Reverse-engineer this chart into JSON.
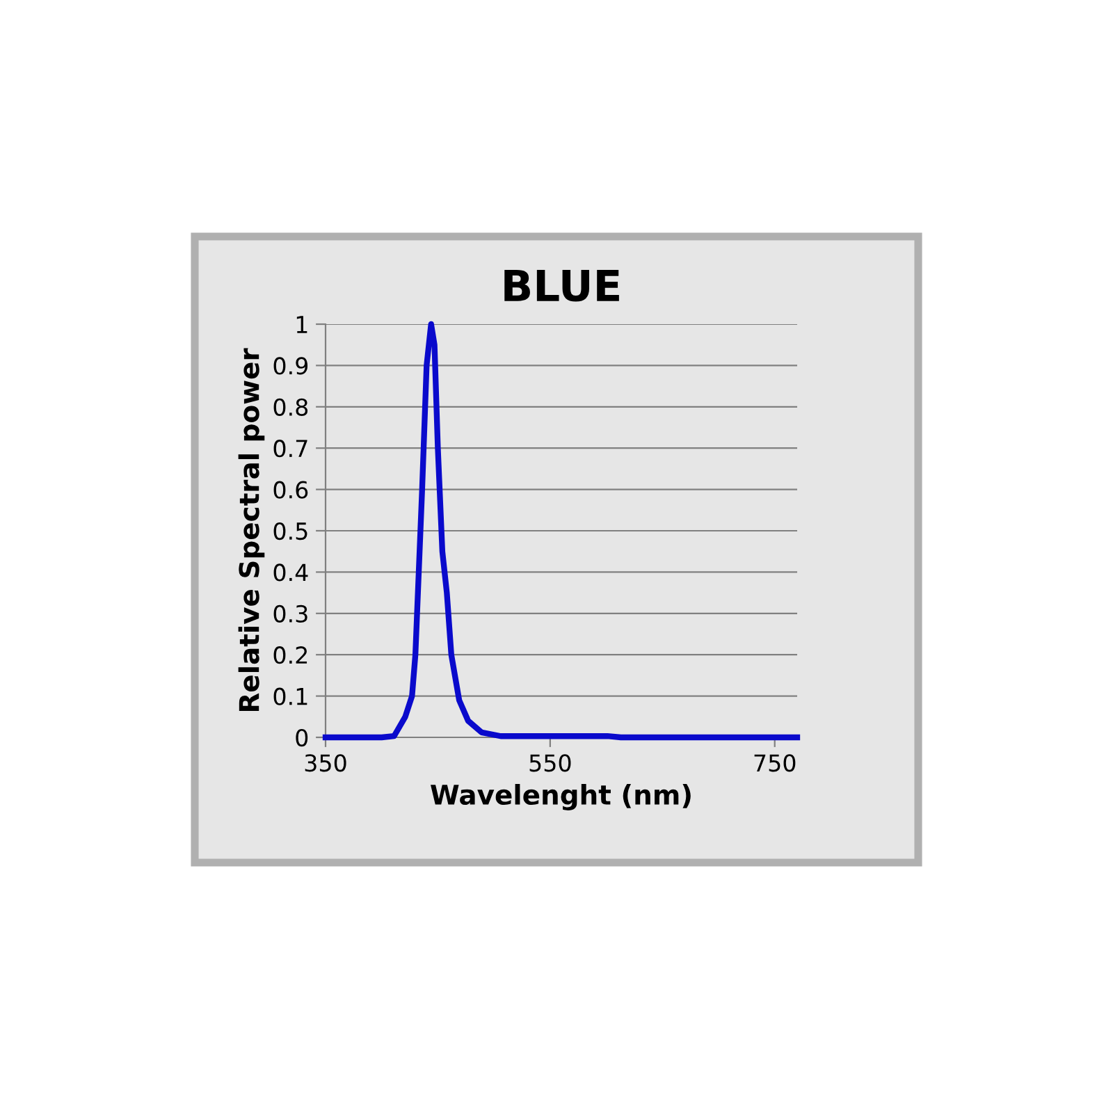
{
  "chart_data": {
    "type": "line",
    "title": "BLUE",
    "xlabel": "Wavelenght (nm)",
    "ylabel": "Relative Spectral power",
    "x": [
      350,
      400,
      411,
      421,
      427,
      430,
      433,
      436,
      440,
      444,
      447,
      450,
      454,
      458,
      462,
      469,
      477,
      489,
      506,
      601,
      613,
      770
    ],
    "series": [
      {
        "color": "#0a0acc",
        "values": [
          0,
          0,
          0.003,
          0.05,
          0.1,
          0.2,
          0.4,
          0.6,
          0.9,
          1.0,
          0.95,
          0.7,
          0.45,
          0.35,
          0.2,
          0.09,
          0.04,
          0.012,
          0.003,
          0.003,
          0,
          0
        ]
      }
    ],
    "xlim": [
      350,
      770
    ],
    "xticks": [
      350,
      550,
      750
    ],
    "ylim": [
      0,
      1
    ],
    "yticks": [
      0,
      0.1,
      0.2,
      0.3,
      0.4,
      0.5,
      0.6,
      0.7,
      0.8,
      0.9,
      1
    ],
    "grid": "y",
    "marker": "none",
    "line_style": "solid"
  }
}
